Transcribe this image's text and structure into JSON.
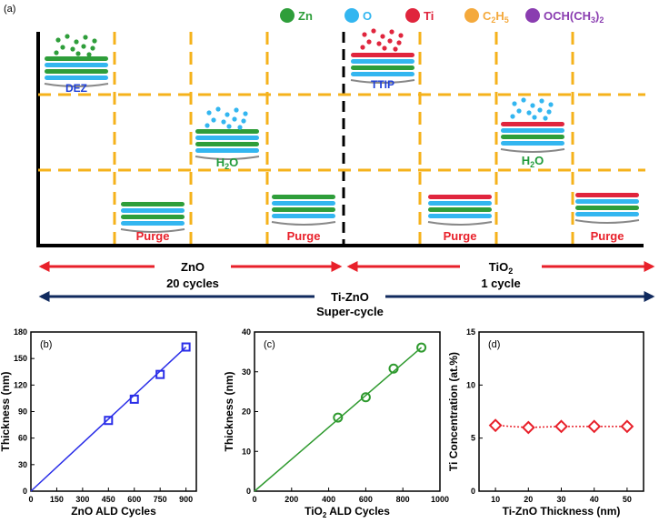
{
  "panel_a": {
    "label": "(a)",
    "legend": [
      {
        "name": "Zn",
        "color": "#2e9e3a"
      },
      {
        "name": "O",
        "color": "#33b6f0"
      },
      {
        "name": "Ti",
        "color": "#e0253d"
      },
      {
        "name": "C2H5",
        "color": "#f4a93c"
      },
      {
        "name": "OCH(CH3)2",
        "color": "#8a3db0"
      }
    ],
    "steps": {
      "dez": "DEZ",
      "ttip": "TTIP",
      "h2o": "H2O",
      "purge": "Purge"
    },
    "zno_arrow": {
      "title": "ZnO",
      "cycles": "20 cycles"
    },
    "tio2_arrow": {
      "title": "TiO2",
      "cycles": "1 cycle"
    },
    "super": {
      "title": "Ti-ZnO",
      "subtitle": "Super-cycle"
    },
    "colors": {
      "dash": "#f5b21b",
      "zn": "#2e9e3a",
      "o": "#33b6f0",
      "ti": "#e0253d",
      "red_arrow": "#e8202a",
      "navy_arrow": "#102a5e",
      "blue_text": "#1e3fd8",
      "green_text": "#1f9a3a",
      "red_text": "#e8202a"
    }
  },
  "chart_data": [
    {
      "panel": "(b)",
      "type": "line",
      "xlabel": "ZnO ALD Cycles",
      "ylabel": "Thickness (nm)",
      "xlim": [
        0,
        960
      ],
      "ylim": [
        0,
        180
      ],
      "xticks": [
        0,
        150,
        300,
        450,
        600,
        750,
        900
      ],
      "yticks": [
        0,
        30,
        60,
        90,
        120,
        150,
        180
      ],
      "points": {
        "x": [
          450,
          600,
          750,
          900
        ],
        "y": [
          80,
          104,
          132,
          163
        ]
      },
      "fit": {
        "x": [
          0,
          900
        ],
        "y": [
          0,
          163
        ]
      },
      "color": "#2a2ee8",
      "marker": "square"
    },
    {
      "panel": "(c)",
      "type": "line",
      "xlabel": "TiO2 ALD Cycles",
      "ylabel": "Thickness (nm)",
      "xlim": [
        0,
        1000
      ],
      "ylim": [
        0,
        40
      ],
      "xticks": [
        0,
        200,
        400,
        600,
        800,
        1000
      ],
      "yticks": [
        0,
        10,
        20,
        30,
        40
      ],
      "points": {
        "x": [
          450,
          600,
          750,
          900
        ],
        "y": [
          18.5,
          23.6,
          30.8,
          36.1
        ]
      },
      "fit": {
        "x": [
          0,
          900
        ],
        "y": [
          0,
          36.1
        ]
      },
      "color": "#2f9a2f",
      "marker": "circle"
    },
    {
      "panel": "(d)",
      "type": "line",
      "xlabel": "Ti-ZnO Thickness (nm)",
      "ylabel": "Ti Concentration (at.%)",
      "xlim": [
        5,
        55
      ],
      "ylim": [
        0,
        15
      ],
      "xticks": [
        10,
        20,
        30,
        40,
        50
      ],
      "yticks": [
        0,
        5,
        10,
        15
      ],
      "points": {
        "x": [
          10,
          20,
          30,
          40,
          50
        ],
        "y": [
          6.2,
          6.0,
          6.1,
          6.1,
          6.1
        ]
      },
      "fit": null,
      "color": "#e8202a",
      "marker": "diamond",
      "dotted": true
    }
  ]
}
